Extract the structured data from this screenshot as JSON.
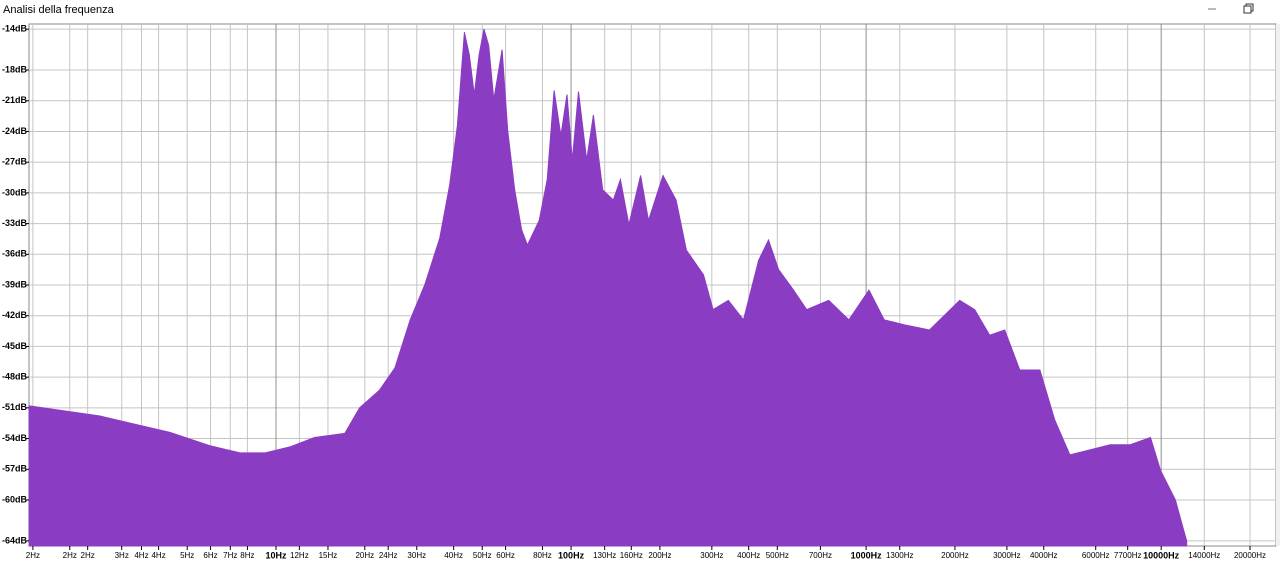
{
  "window": {
    "title": "Analisi della frequenza"
  },
  "chart_data": {
    "type": "area",
    "xscale": "log",
    "grid": true,
    "color": "#8a3cc2",
    "x": [
      1.455,
      2.53,
      4.37,
      5.97,
      7.55,
      9.2,
      11.2,
      13.5,
      17.1,
      19.2,
      22.4,
      25.3,
      28.5,
      31.9,
      35.9,
      38.8,
      41.2,
      43.5,
      45.2,
      47,
      48.8,
      50.7,
      52.6,
      54.7,
      58.4,
      61,
      64.4,
      68,
      71.1,
      78,
      83,
      87.6,
      92.4,
      96.9,
      101,
      106,
      113,
      119,
      128,
      139,
      147,
      157,
      172,
      183,
      205,
      227,
      246,
      281,
      303,
      341,
      384,
      432,
      467,
      505,
      568,
      629,
      747,
      874,
      1023,
      1152,
      1350,
      1640,
      2075,
      2333,
      2623,
      2950,
      3317,
      3880,
      4360,
      4905,
      5740,
      6720,
      7860,
      9200,
      9950,
      11170,
      11900,
      12200
    ],
    "values": [
      -50.8,
      -51.8,
      -53.4,
      -54.7,
      -55.4,
      -55.4,
      -54.8,
      -53.9,
      -53.5,
      -51,
      -49.3,
      -47.1,
      -42.4,
      -39,
      -34.4,
      -29.2,
      -23.4,
      -14.3,
      -16.5,
      -20.4,
      -16.5,
      -14,
      -15.6,
      -20.9,
      -16,
      -23.9,
      -29.7,
      -33.6,
      -35.1,
      -32.7,
      -28.7,
      -20,
      -24.4,
      -20.4,
      -26.8,
      -20.1,
      -26.8,
      -22.4,
      -29.7,
      -30.7,
      -28.7,
      -33.1,
      -28.3,
      -32.7,
      -28.3,
      -30.7,
      -35.6,
      -38,
      -41.4,
      -40.5,
      -42.4,
      -36.6,
      -34.6,
      -37.5,
      -39.5,
      -41.4,
      -40.5,
      -42.4,
      -39.5,
      -42.4,
      -42.9,
      -43.4,
      -40.5,
      -41.4,
      -43.9,
      -43.4,
      -47.3,
      -47.3,
      -52.2,
      -55.6,
      -55.1,
      -54.6,
      -54.6,
      -53.9,
      -57.1,
      -60,
      -62.9,
      -64
    ],
    "xlim": [
      1.455,
      24500
    ],
    "ylim": [
      -64.5,
      -13.5
    ],
    "xticks": [
      {
        "value": 1.5,
        "label": "2Hz"
      },
      {
        "value": 2,
        "label": "2Hz"
      },
      {
        "value": 2.3,
        "label": "2Hz"
      },
      {
        "value": 3,
        "label": "3Hz"
      },
      {
        "value": 3.5,
        "label": "4Hz"
      },
      {
        "value": 4,
        "label": "4Hz"
      },
      {
        "value": 5,
        "label": "5Hz"
      },
      {
        "value": 6,
        "label": "6Hz"
      },
      {
        "value": 7,
        "label": "7Hz"
      },
      {
        "value": 8,
        "label": "8Hz"
      },
      {
        "value": 10,
        "label": "10Hz"
      },
      {
        "value": 12,
        "label": "12Hz"
      },
      {
        "value": 15,
        "label": "15Hz"
      },
      {
        "value": 20,
        "label": "20Hz"
      },
      {
        "value": 24,
        "label": "24Hz"
      },
      {
        "value": 30,
        "label": "30Hz"
      },
      {
        "value": 40,
        "label": "40Hz"
      },
      {
        "value": 50,
        "label": "50Hz"
      },
      {
        "value": 60,
        "label": "60Hz"
      },
      {
        "value": 80,
        "label": "80Hz"
      },
      {
        "value": 100,
        "label": "100Hz"
      },
      {
        "value": 130,
        "label": "130Hz"
      },
      {
        "value": 160,
        "label": "160Hz"
      },
      {
        "value": 200,
        "label": "200Hz"
      },
      {
        "value": 300,
        "label": "300Hz"
      },
      {
        "value": 400,
        "label": "400Hz"
      },
      {
        "value": 500,
        "label": "500Hz"
      },
      {
        "value": 700,
        "label": "700Hz"
      },
      {
        "value": 1000,
        "label": "1000Hz"
      },
      {
        "value": 1300,
        "label": "1300Hz"
      },
      {
        "value": 2000,
        "label": "2000Hz"
      },
      {
        "value": 3000,
        "label": "3000Hz"
      },
      {
        "value": 4000,
        "label": "4000Hz"
      },
      {
        "value": 6000,
        "label": "6000Hz"
      },
      {
        "value": 7700,
        "label": "7700Hz"
      },
      {
        "value": 10000,
        "label": "10000Hz"
      },
      {
        "value": 14000,
        "label": "14000Hz"
      },
      {
        "value": 20000,
        "label": "20000Hz"
      }
    ],
    "yticks": [
      {
        "value": -14,
        "label": "-14dB"
      },
      {
        "value": -18,
        "label": "-18dB"
      },
      {
        "value": -21,
        "label": "-21dB"
      },
      {
        "value": -24,
        "label": "-24dB"
      },
      {
        "value": -27,
        "label": "-27dB"
      },
      {
        "value": -30,
        "label": "-30dB"
      },
      {
        "value": -33,
        "label": "-33dB"
      },
      {
        "value": -36,
        "label": "-36dB"
      },
      {
        "value": -39,
        "label": "-39dB"
      },
      {
        "value": -42,
        "label": "-42dB"
      },
      {
        "value": -45,
        "label": "-45dB"
      },
      {
        "value": -48,
        "label": "-48dB"
      },
      {
        "value": -51,
        "label": "-51dB"
      },
      {
        "value": -54,
        "label": "-54dB"
      },
      {
        "value": -57,
        "label": "-57dB"
      },
      {
        "value": -60,
        "label": "-60dB"
      },
      {
        "value": -64,
        "label": "-64dB"
      }
    ]
  }
}
